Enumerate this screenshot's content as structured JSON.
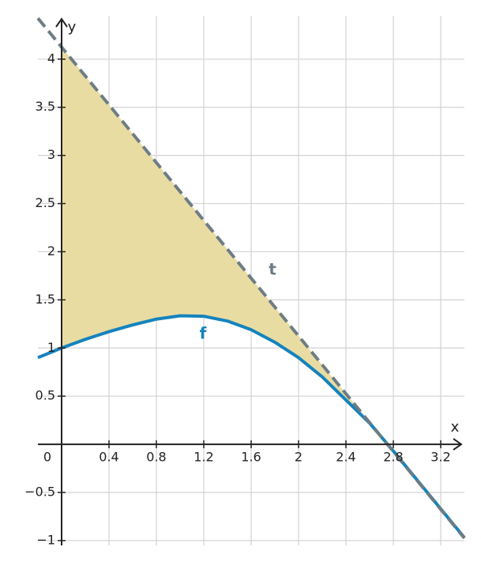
{
  "chart_data": {
    "type": "line",
    "x": [
      -0.2,
      0,
      0.2,
      0.4,
      0.6,
      0.8,
      1.0,
      1.2,
      1.4,
      1.6,
      1.8,
      2.0,
      2.2,
      2.4,
      2.6,
      2.8,
      3.0,
      3.2,
      3.4
    ],
    "series": [
      {
        "name": "f",
        "color": "#1583bd",
        "values": [
          0.9,
          1.0,
          1.09,
          1.17,
          1.24,
          1.3,
          1.335,
          1.33,
          1.28,
          1.19,
          1.06,
          0.9,
          0.7,
          0.46,
          0.22,
          -0.07,
          -0.37,
          -0.67,
          -0.97
        ]
      },
      {
        "name": "t",
        "color": "#6e7c84",
        "dashed": true,
        "values": [
          4.425,
          4.125,
          3.825,
          3.525,
          3.225,
          2.925,
          2.625,
          2.325,
          2.025,
          1.725,
          1.425,
          1.125,
          0.825,
          0.525,
          0.225,
          -0.075,
          -0.375,
          -0.675,
          -0.975
        ]
      }
    ],
    "fill_color": "#e9dca2",
    "xlabel": "x",
    "ylabel": "y",
    "xlim": [
      -0.2,
      3.4
    ],
    "ylim": [
      -1.05,
      4.45
    ],
    "xticks": [
      0,
      0.4,
      0.8,
      1.2,
      1.6,
      2,
      2.4,
      2.8,
      3.2
    ],
    "yticks": [
      {
        "value": -1,
        "label": "−1"
      },
      {
        "value": -0.5,
        "label": "−0.5"
      },
      0.5,
      1,
      1.5,
      2,
      2.5,
      3,
      3.5,
      4
    ],
    "grid": true
  }
}
